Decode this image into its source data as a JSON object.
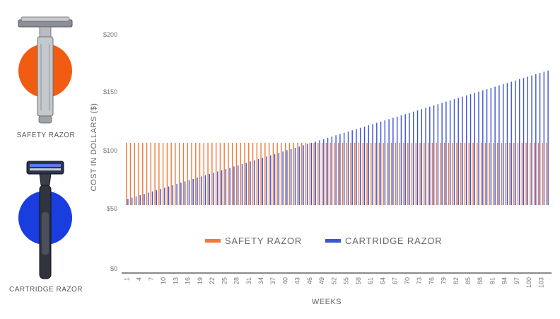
{
  "illustrations": [
    {
      "label": "SAFETY RAZOR",
      "circle_color": "#f25b12"
    },
    {
      "label": "CARTRIDGE RAZOR",
      "circle_color": "#1a3de0"
    }
  ],
  "chart_data": {
    "type": "bar",
    "xlabel": "WEEKS",
    "ylabel": "COST IN DOLLARS ($)",
    "yticks": [
      "$0",
      "$0",
      "$50",
      "$100",
      "$150",
      "$200"
    ],
    "ylim": [
      0,
      250
    ],
    "grid": false,
    "legend_position": "center",
    "categories": [
      1,
      2,
      3,
      4,
      5,
      6,
      7,
      8,
      9,
      10,
      11,
      12,
      13,
      14,
      15,
      16,
      17,
      18,
      19,
      20,
      21,
      22,
      23,
      24,
      25,
      26,
      27,
      28,
      29,
      30,
      31,
      32,
      33,
      34,
      35,
      36,
      37,
      38,
      39,
      40,
      41,
      42,
      43,
      44,
      45,
      46,
      47,
      48,
      49,
      50,
      51,
      52,
      53,
      54,
      55,
      56,
      57,
      58,
      59,
      60,
      61,
      62,
      63,
      64,
      65,
      66,
      67,
      68,
      69,
      70,
      71,
      72,
      73,
      74,
      75,
      76,
      77,
      78,
      79,
      80,
      81,
      82,
      83,
      84,
      85,
      86,
      87,
      88,
      89,
      90,
      91,
      92,
      93,
      94,
      95,
      96,
      97,
      98,
      99,
      100,
      101,
      102,
      103,
      104
    ],
    "xtick_labels": [
      "1",
      "4",
      "7",
      "10",
      "13",
      "16",
      "19",
      "22",
      "25",
      "28",
      "31",
      "34",
      "37",
      "40",
      "43",
      "46",
      "49",
      "52",
      "55",
      "58",
      "61",
      "64",
      "67",
      "70",
      "73",
      "76",
      "79",
      "82",
      "85",
      "88",
      "91",
      "94",
      "97",
      "100",
      "103"
    ],
    "series": [
      {
        "name": "SAFETY RAZOR",
        "color": "#f07a3a",
        "values": [
          50,
          50,
          50,
          50,
          50,
          50,
          50,
          50,
          50,
          50,
          50,
          50,
          50,
          50,
          50,
          50,
          50,
          50,
          50,
          50,
          50,
          50,
          50,
          50,
          50,
          50,
          50,
          50,
          50,
          50,
          50,
          50,
          50,
          50,
          50,
          50,
          50,
          50,
          50,
          50,
          50,
          50,
          50,
          50,
          50,
          50,
          50,
          50,
          50,
          50,
          50,
          50,
          50,
          50,
          50,
          50,
          50,
          50,
          50,
          50,
          50,
          50,
          50,
          50,
          50,
          50,
          50,
          50,
          50,
          50,
          50,
          50,
          50,
          50,
          50,
          50,
          50,
          50,
          50,
          50,
          50,
          50,
          50,
          50,
          50,
          50,
          50,
          50,
          50,
          50,
          50,
          50,
          50,
          50,
          50,
          50,
          50,
          50,
          50,
          50,
          50,
          50,
          50,
          50
        ]
      },
      {
        "name": "CARTRIDGE RAZOR",
        "color": "#3d54cf",
        "values": [
          5,
          6,
          7,
          8,
          9,
          10,
          11,
          12,
          13,
          14,
          15,
          16,
          17,
          18,
          19,
          20,
          21,
          22,
          23,
          24,
          25,
          26,
          27,
          28,
          29,
          30,
          31,
          32,
          33,
          34,
          35,
          36,
          37,
          38,
          39,
          40,
          41,
          42,
          43,
          44,
          45,
          46,
          47,
          48,
          49,
          50,
          51,
          52,
          53,
          54,
          55,
          56,
          57,
          58,
          59,
          60,
          61,
          62,
          63,
          64,
          65,
          66,
          67,
          68,
          69,
          70,
          71,
          72,
          73,
          74,
          75,
          76,
          77,
          78,
          79,
          80,
          81,
          82,
          83,
          84,
          85,
          86,
          87,
          88,
          89,
          90,
          91,
          92,
          93,
          94,
          95,
          96,
          97,
          98,
          99,
          100,
          101,
          102,
          103,
          104,
          105,
          106,
          107,
          108
        ]
      }
    ]
  }
}
